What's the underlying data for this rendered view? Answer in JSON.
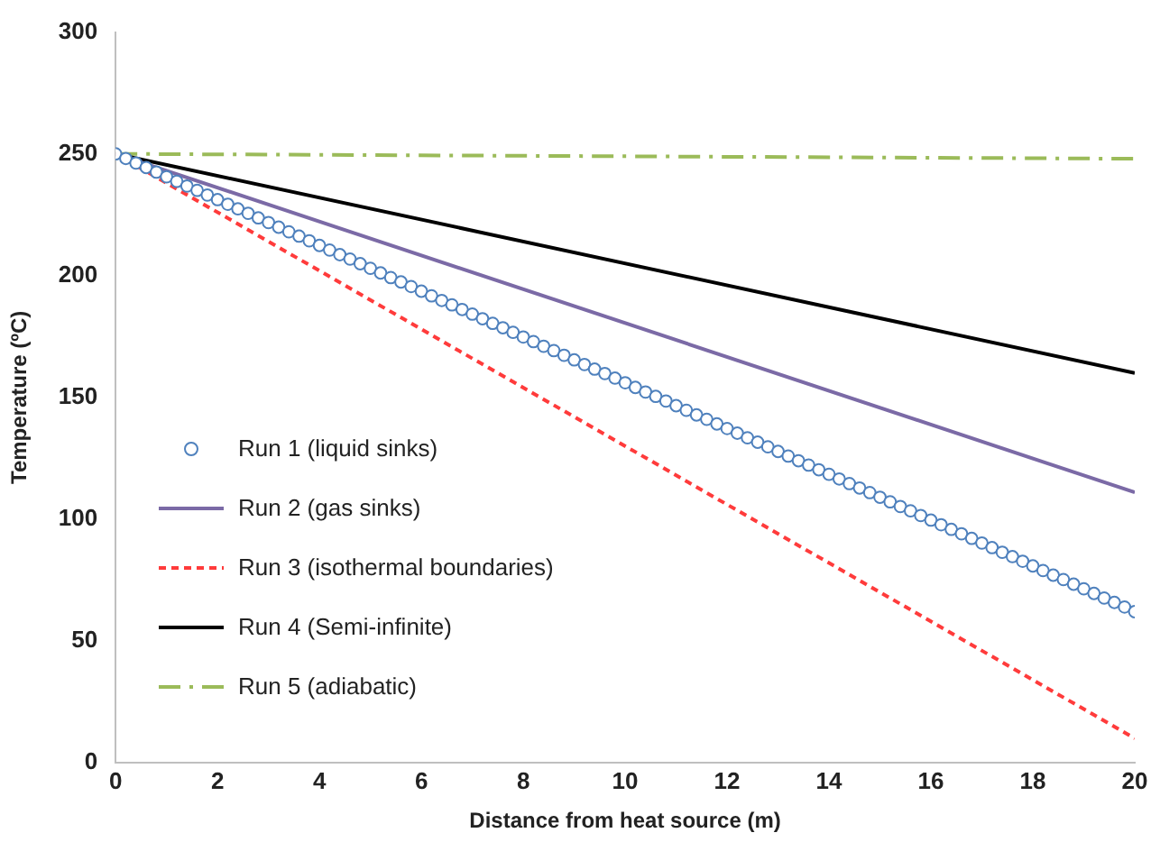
{
  "chart_data": {
    "type": "line",
    "xlabel": "Distance from heat source (m)",
    "ylabel": "Temperature (ºC)",
    "xlim": [
      0,
      20
    ],
    "xticks": [
      0,
      2,
      4,
      6,
      8,
      10,
      12,
      14,
      16,
      18,
      20
    ],
    "ylim": [
      0,
      300
    ],
    "yticks": [
      0,
      50,
      100,
      150,
      200,
      250,
      300
    ],
    "grid": false,
    "legend": "left",
    "series": [
      {
        "name": "Run 1 (liquid sinks)",
        "type": "scatter",
        "marker": "circle",
        "color": "#4f81bd",
        "x": [
          0,
          0.2,
          0.4,
          0.6,
          0.8,
          1,
          1.2,
          1.4,
          1.6,
          1.8,
          2,
          2.2,
          2.4,
          2.6,
          2.8,
          3,
          3.2,
          3.4,
          3.6,
          3.8,
          4,
          4.2,
          4.4,
          4.6,
          4.8,
          5,
          5.2,
          5.4,
          5.6,
          5.8,
          6,
          6.2,
          6.4,
          6.6,
          6.8,
          7,
          7.2,
          7.4,
          7.6,
          7.8,
          8,
          8.2,
          8.4,
          8.6,
          8.8,
          9,
          9.2,
          9.4,
          9.6,
          9.8,
          10,
          10.2,
          10.4,
          10.6,
          10.8,
          11,
          11.2,
          11.4,
          11.6,
          11.8,
          12,
          12.2,
          12.4,
          12.6,
          12.8,
          13,
          13.2,
          13.4,
          13.6,
          13.8,
          14,
          14.2,
          14.4,
          14.6,
          14.8,
          15,
          15.2,
          15.4,
          15.6,
          15.8,
          16,
          16.2,
          16.4,
          16.6,
          16.8,
          17,
          17.2,
          17.4,
          17.6,
          17.8,
          18,
          18.2,
          18.4,
          18.6,
          18.8,
          19,
          19.2,
          19.4,
          19.6,
          19.8,
          20
        ],
        "values": [
          250,
          248.1,
          246.2,
          244.4,
          242.5,
          240.6,
          238.7,
          236.8,
          235,
          233.1,
          231.2,
          229.3,
          227.4,
          225.6,
          223.7,
          221.8,
          219.9,
          218,
          216.2,
          214.3,
          212.4,
          210.5,
          208.6,
          206.8,
          204.9,
          203,
          201.1,
          199.2,
          197.4,
          195.5,
          193.6,
          191.7,
          189.8,
          188,
          186.1,
          184.2,
          182.3,
          180.4,
          178.6,
          176.7,
          174.8,
          172.9,
          171,
          169.2,
          167.3,
          165.4,
          163.5,
          161.6,
          159.8,
          157.9,
          156,
          154.1,
          152.2,
          150.4,
          148.5,
          146.6,
          144.7,
          142.8,
          141,
          139.1,
          137.2,
          135.3,
          133.4,
          131.6,
          129.7,
          127.8,
          125.9,
          124,
          122.2,
          120.3,
          118.4,
          116.5,
          114.6,
          112.8,
          110.9,
          109,
          107.1,
          105.2,
          103.4,
          101.5,
          99.6,
          97.7,
          95.8,
          94,
          92.1,
          90.2,
          88.3,
          86.4,
          84.6,
          82.7,
          80.8,
          78.9,
          77,
          75.2,
          73.3,
          71.4,
          69.5,
          67.6,
          65.8,
          63.9,
          62
        ]
      },
      {
        "name": "Run 2 (gas sinks)",
        "type": "line",
        "line_style": "solid",
        "color": "#7b6aa6",
        "x": [
          0,
          20
        ],
        "values": [
          250,
          111
        ]
      },
      {
        "name": "Run 3 (isothermal boundaries)",
        "type": "line",
        "line_style": "dashed",
        "color": "#ff3b3b",
        "x": [
          0,
          20
        ],
        "values": [
          250,
          10
        ]
      },
      {
        "name": "Run 4 (Semi-infinite)",
        "type": "line",
        "line_style": "solid",
        "color": "#000000",
        "x": [
          0,
          20
        ],
        "values": [
          250,
          160
        ]
      },
      {
        "name": "Run 5 (adiabatic)",
        "type": "line",
        "line_style": "dotted",
        "color": "#9bbb59",
        "x": [
          0,
          20
        ],
        "values": [
          250,
          248
        ]
      }
    ]
  }
}
